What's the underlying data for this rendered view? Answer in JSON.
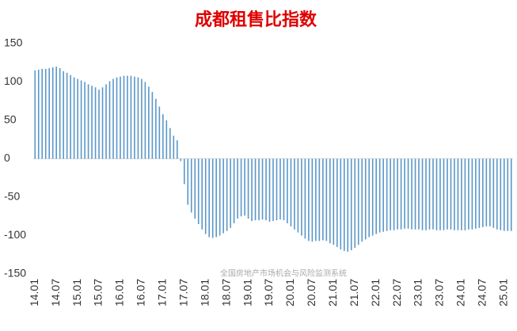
{
  "chart_data": {
    "type": "bar",
    "title": "成都租售比指数",
    "annotation": "全国房地产市场机会与风险监测系统",
    "categories": [
      "14.01",
      null,
      null,
      null,
      null,
      null,
      "14.07",
      null,
      null,
      null,
      null,
      null,
      "15.01",
      null,
      null,
      null,
      null,
      null,
      "15.07",
      null,
      null,
      null,
      null,
      null,
      "16.01",
      null,
      null,
      null,
      null,
      null,
      "16.07",
      null,
      null,
      null,
      null,
      null,
      "17.01",
      null,
      null,
      null,
      null,
      null,
      "17.07",
      null,
      null,
      null,
      null,
      null,
      "18.01",
      null,
      null,
      null,
      null,
      null,
      "18.07",
      null,
      null,
      null,
      null,
      null,
      "19.01",
      null,
      null,
      null,
      null,
      null,
      "19.07",
      null,
      null,
      null,
      null,
      null,
      "20.01",
      null,
      null,
      null,
      null,
      null,
      "20.07",
      null,
      null,
      null,
      null,
      null,
      "21.01",
      null,
      null,
      null,
      null,
      null,
      "21.07",
      null,
      null,
      null,
      null,
      null,
      "22.01",
      null,
      null,
      null,
      null,
      null,
      "22.07",
      null,
      null,
      null,
      null,
      null,
      "23.01",
      null,
      null,
      null,
      null,
      null,
      "23.07",
      null,
      null,
      null,
      null,
      null,
      "24.01",
      null,
      null,
      null,
      null,
      null,
      "24.07",
      null,
      null,
      null,
      null,
      null,
      "25.01",
      null,
      null
    ],
    "values": [
      115,
      116,
      117,
      117,
      118,
      119,
      120,
      118,
      114,
      112,
      109,
      106,
      104,
      102,
      100,
      97,
      95,
      93,
      90,
      93,
      97,
      101,
      104,
      106,
      107,
      108,
      108,
      108,
      107,
      106,
      104,
      100,
      94,
      87,
      78,
      68,
      58,
      50,
      40,
      30,
      24,
      -3,
      -33,
      -60,
      -70,
      -78,
      -85,
      -92,
      -98,
      -102,
      -103,
      -102,
      -100,
      -97,
      -94,
      -90,
      -84,
      -78,
      -75,
      -74,
      -78,
      -81,
      -80,
      -80,
      -79,
      -80,
      -82,
      -81,
      -80,
      -79,
      -80,
      -84,
      -88,
      -92,
      -96,
      -100,
      -104,
      -107,
      -108,
      -107,
      -107,
      -106,
      -107,
      -110,
      -112,
      -115,
      -118,
      -120,
      -121,
      -119,
      -116,
      -112,
      -108,
      -105,
      -102,
      -100,
      -98,
      -96,
      -95,
      -94,
      -93,
      -93,
      -92,
      -92,
      -91,
      -91,
      -92,
      -92,
      -92,
      -93,
      -93,
      -92,
      -92,
      -93,
      -93,
      -93,
      -92,
      -92,
      -93,
      -93,
      -93,
      -93,
      -92,
      -92,
      -91,
      -90,
      -89,
      -88,
      -88,
      -90,
      -92,
      -93,
      -94,
      -94,
      -94
    ],
    "color": "#5a97c8",
    "ylim": [
      -150,
      150
    ],
    "yticks": [
      -150,
      -100,
      -50,
      0,
      50,
      100,
      150
    ],
    "grid": false
  }
}
